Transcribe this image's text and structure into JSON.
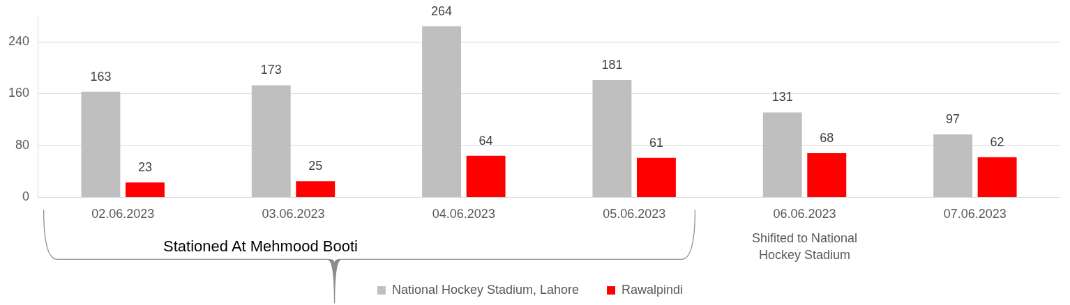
{
  "chart_data": {
    "type": "bar",
    "categories": [
      "02.06.2023",
      "03.06.2023",
      "04.06.2023",
      "05.06.2023",
      "06.06.2023",
      "07.06.2023"
    ],
    "series": [
      {
        "name": "National Hockey Stadium, Lahore",
        "color": "#bfbfbf",
        "values": [
          163,
          173,
          264,
          181,
          131,
          97
        ]
      },
      {
        "name": "Rawalpindi",
        "color": "#ff0000",
        "values": [
          23,
          25,
          64,
          61,
          68,
          62
        ]
      }
    ],
    "ylim": [
      0,
      280
    ],
    "yticks": [
      0,
      80,
      160,
      240
    ],
    "grid": "y",
    "legend": "bottom",
    "data_labels": true,
    "annotations": [
      "Stationed At Mehmood Booti",
      "Shifited to National Hockey Stadium"
    ]
  }
}
